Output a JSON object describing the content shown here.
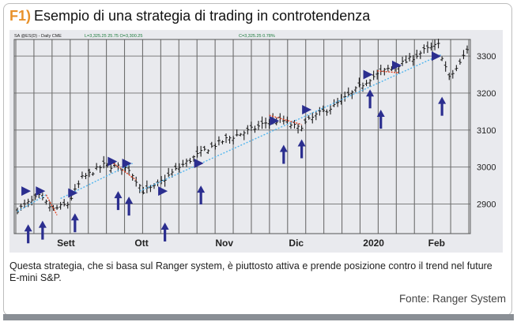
{
  "figure": {
    "label": "F1)",
    "title": "Esempio di una strategia di trading in controtendenza",
    "caption": "Questa strategia, che si basa sul Ranger system, è piuttosto attiva e prende posizione contro il trend nel future E-mini S&P.",
    "source": "Fonte: Ranger System"
  },
  "header": {
    "symbol": "SA  @ES(D) - Daily  CME",
    "quote_left": "L=3,325.25  25.75  O=3,300.25",
    "quote_right": "C=3,325.25  0.78%"
  },
  "colors": {
    "bars": "#1a1a1a",
    "trend_dotted": "#52b6ee",
    "trend_red": "#e04020",
    "arrows": "#2b2e8f",
    "grid": "#6e6e6e",
    "plot_bg": "#e9eaee",
    "title_label": "#e8912a"
  },
  "chart_data": {
    "type": "ohlc",
    "title": "Esempio di una strategia di trading in controtendenza",
    "x_labels": [
      "Sett",
      "Ott",
      "Nov",
      "Dic",
      "2020",
      "Feb"
    ],
    "y_ticks": [
      2900,
      3000,
      3100,
      3200,
      3300
    ],
    "ylim": [
      2820,
      3345
    ],
    "grid": true,
    "series_keypoints": [
      [
        0,
        2885
      ],
      [
        6,
        2920
      ],
      [
        10,
        2885
      ],
      [
        14,
        2900
      ],
      [
        18,
        2970
      ],
      [
        24,
        3005
      ],
      [
        28,
        3000
      ],
      [
        31,
        2995
      ],
      [
        35,
        2935
      ],
      [
        38,
        2945
      ],
      [
        45,
        3000
      ],
      [
        52,
        3045
      ],
      [
        58,
        3075
      ],
      [
        62,
        3090
      ],
      [
        66,
        3105
      ],
      [
        70,
        3125
      ],
      [
        74,
        3125
      ],
      [
        78,
        3105
      ],
      [
        83,
        3140
      ],
      [
        88,
        3165
      ],
      [
        93,
        3200
      ],
      [
        98,
        3240
      ],
      [
        103,
        3265
      ],
      [
        108,
        3285
      ],
      [
        113,
        3315
      ],
      [
        117,
        3330
      ],
      [
        120,
        3240
      ],
      [
        123,
        3280
      ],
      [
        125,
        3320
      ]
    ],
    "trend_segments": [
      {
        "style": "dotted",
        "points": [
          [
            0,
            2880
          ],
          [
            8,
            2925
          ]
        ]
      },
      {
        "style": "red",
        "points": [
          [
            8,
            2925
          ],
          [
            11,
            2870
          ]
        ]
      },
      {
        "style": "dotted",
        "points": [
          [
            12,
            2915
          ],
          [
            32,
            3010
          ]
        ]
      },
      {
        "style": "red",
        "points": [
          [
            26,
            3015
          ],
          [
            33,
            2965
          ]
        ]
      },
      {
        "style": "dotted",
        "points": [
          [
            34,
            2935
          ],
          [
            118,
            3305
          ]
        ]
      },
      {
        "style": "red",
        "points": [
          [
            70,
            3140
          ],
          [
            79,
            3115
          ]
        ]
      },
      {
        "style": "red",
        "points": [
          [
            100,
            3260
          ],
          [
            106,
            3255
          ]
        ]
      }
    ],
    "signals_right": [
      [
        2,
        2935
      ],
      [
        6,
        2935
      ],
      [
        15,
        2930
      ],
      [
        26,
        3015
      ],
      [
        30,
        3010
      ],
      [
        40,
        2935
      ],
      [
        50,
        3010
      ],
      [
        71,
        3125
      ],
      [
        80,
        3155
      ],
      [
        97,
        3250
      ],
      [
        105,
        3275
      ],
      [
        116,
        3300
      ]
    ],
    "signals_up": [
      [
        3,
        2845
      ],
      [
        7,
        2855
      ],
      [
        16,
        2875
      ],
      [
        28,
        2935
      ],
      [
        31,
        2920
      ],
      [
        41,
        2850
      ],
      [
        51,
        2950
      ],
      [
        74,
        3060
      ],
      [
        79,
        3075
      ],
      [
        98,
        3210
      ],
      [
        101,
        3155
      ],
      [
        118,
        3190
      ]
    ]
  }
}
